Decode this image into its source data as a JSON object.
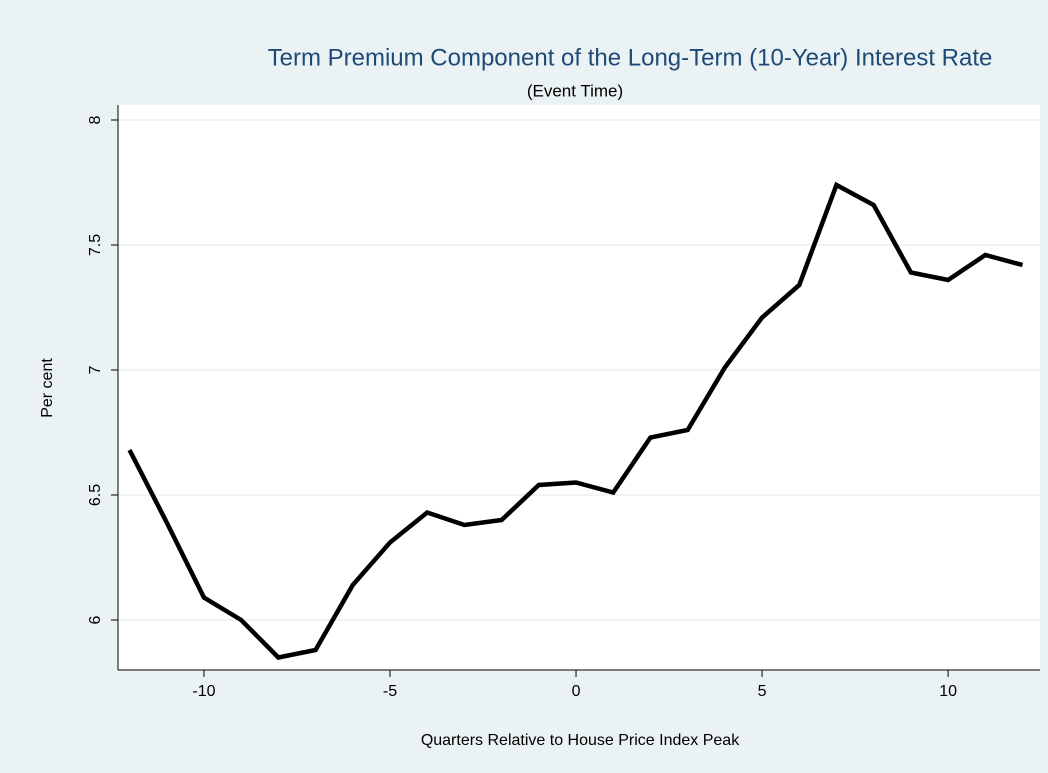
{
  "chart_data": {
    "type": "line",
    "title": "Term Premium Component of the Long-Term (10-Year) Interest Rate",
    "subtitle": "(Event Time)",
    "x_label": "Quarters Relative to House Price Index Peak",
    "y_label": "Per cent",
    "x": [
      -12,
      -11,
      -10,
      -9,
      -8,
      -7,
      -6,
      -5,
      -4,
      -3,
      -2,
      -1,
      0,
      1,
      2,
      3,
      4,
      5,
      6,
      7,
      8,
      9,
      10,
      11,
      12
    ],
    "values": [
      6.68,
      6.39,
      6.09,
      6.0,
      5.85,
      5.88,
      6.14,
      6.31,
      6.43,
      6.38,
      6.4,
      6.54,
      6.55,
      6.51,
      6.73,
      6.76,
      7.01,
      7.21,
      7.34,
      7.74,
      7.66,
      7.39,
      7.36,
      7.46,
      7.42
    ],
    "color": "#000000",
    "xlim": [
      -12.31,
      12.47
    ],
    "xticks": [
      -10,
      -5,
      0,
      5,
      10
    ],
    "ylim": [
      5.8,
      8.06
    ],
    "yticks": [
      6,
      6.5,
      7,
      7.5,
      8
    ],
    "grid": true
  }
}
